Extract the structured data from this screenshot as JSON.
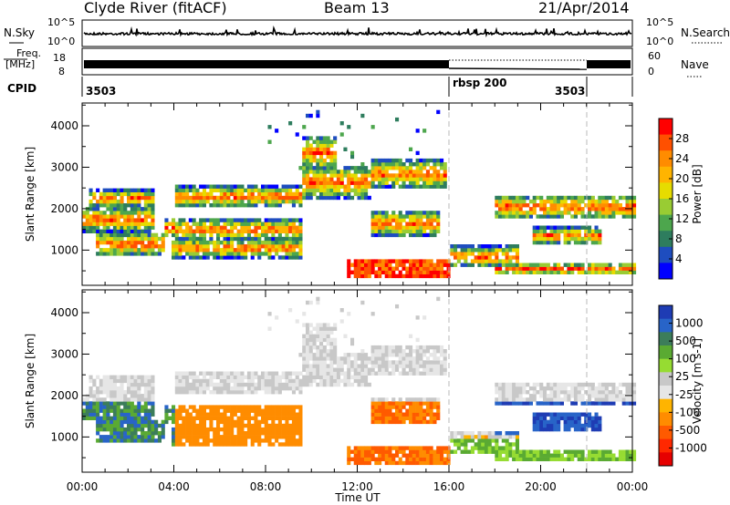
{
  "header": {
    "station": "Clyde River (fitACF)",
    "beam": "Beam 13",
    "date": "21/Apr/2014"
  },
  "nsky_panel": {
    "left_label": "N.Sky",
    "right_label": "N.Search",
    "left_ticks": [
      "10^5",
      "10^0"
    ],
    "right_ticks": [
      "10^5",
      "10^0"
    ]
  },
  "freq_panel": {
    "label_line1": "Freq.",
    "label_line2": "[MHz]",
    "left_ticks": [
      "18",
      "8"
    ],
    "right_label": "Nave",
    "right_ticks": [
      "60",
      "0"
    ]
  },
  "cpid_panel": {
    "label": "CPID",
    "segments": [
      "3503",
      "rbsp 200",
      "3503"
    ]
  },
  "chart_data": [
    {
      "type": "heatmap",
      "panel": "power",
      "ylabel": "Slant Range [km]",
      "xlabel": "",
      "ylim": [
        150,
        4550
      ],
      "yticks": [
        "1000",
        "2000",
        "3000",
        "4000"
      ],
      "xlim_hours": [
        0,
        24
      ],
      "colorbar": {
        "label": "Power [dB]",
        "ticks": [
          "28",
          "24",
          "20",
          "16",
          "12",
          "8",
          "4"
        ],
        "colors": [
          "#ff0000",
          "#ff5000",
          "#ff8c00",
          "#ffb400",
          "#e6dc00",
          "#99cc33",
          "#4da64d",
          "#2e7d5e",
          "#1e4dbf",
          "#0000ff"
        ]
      }
    },
    {
      "type": "heatmap",
      "panel": "velocity",
      "ylabel": "Slant Range [km]",
      "xlabel": "Time UT",
      "ylim": [
        150,
        4550
      ],
      "yticks": [
        "1000",
        "2000",
        "3000",
        "4000"
      ],
      "xticks": [
        "00:00",
        "04:00",
        "08:00",
        "12:00",
        "16:00",
        "20:00",
        "00:00"
      ],
      "xlim_hours": [
        0,
        24
      ],
      "colorbar": {
        "label": "Velocity [m s-1]",
        "ticks": [
          "1000",
          "500",
          "100",
          "25",
          "-25",
          "-100",
          "-500",
          "-1000"
        ],
        "colors": [
          "#1e3cb4",
          "#2864c8",
          "#3c7d5a",
          "#5aaa32",
          "#96dc32",
          "#c8c8c8",
          "#e6e6e6",
          "#ffb400",
          "#ff8c00",
          "#ff5a00",
          "#ff2800",
          "#e60000"
        ]
      }
    }
  ]
}
